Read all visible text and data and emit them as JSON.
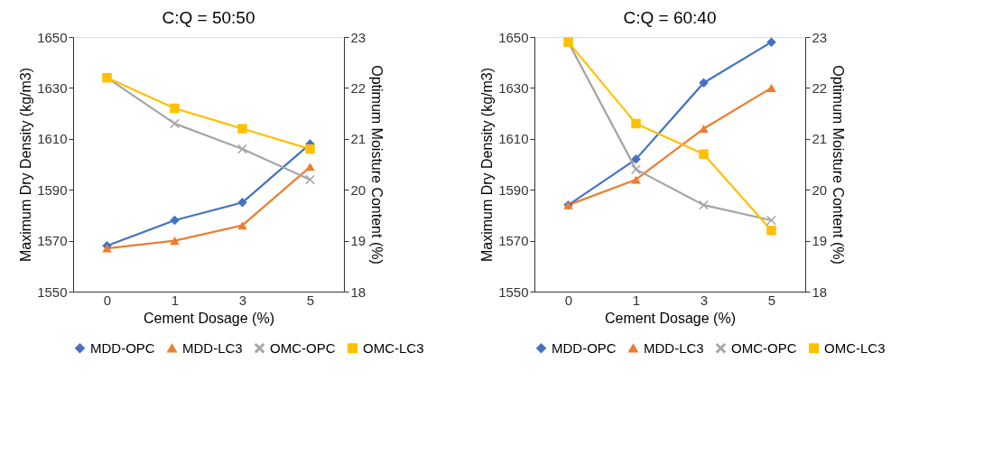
{
  "chart_data": [
    {
      "type": "line",
      "title": "C:Q = 50:50",
      "xlabel": "Cement Dosage (%)",
      "ylabel": "Maximum Dry Density (kg/m3)",
      "y2label": "Optimum Moisture Content (%)",
      "categories": [
        "0",
        "1",
        "3",
        "5"
      ],
      "ylim": [
        1550,
        1650
      ],
      "yticks": [
        1550,
        1570,
        1590,
        1610,
        1630,
        1650
      ],
      "y2lim": [
        18,
        23
      ],
      "y2ticks": [
        18,
        19,
        20,
        21,
        22,
        23
      ],
      "grid": false,
      "legend": "bottom",
      "series": [
        {
          "name": "MDD-OPC",
          "color": "#4472c4",
          "marker": "diamond",
          "values": [
            1568,
            1578,
            1585,
            1608
          ]
        },
        {
          "name": "MDD-LC3",
          "color": "#ed7d31",
          "marker": "triangle",
          "values": [
            1567,
            1570,
            1576,
            1599
          ]
        },
        {
          "name": "OMC-OPC",
          "color": "#a5a5a5",
          "marker": "cross",
          "axis": "y2",
          "values": [
            22.2,
            21.3,
            20.8,
            20.2
          ]
        },
        {
          "name": "OMC-LC3",
          "color": "#ffc000",
          "marker": "square",
          "axis": "y2",
          "values": [
            22.2,
            21.6,
            21.2,
            20.8
          ]
        }
      ]
    },
    {
      "type": "line",
      "title": "C:Q = 60:40",
      "xlabel": "Cement Dosage (%)",
      "ylabel": "Maximum Dry Density (kg/m3)",
      "y2label": "Optimum Moisture Content (%)",
      "categories": [
        "0",
        "1",
        "3",
        "5"
      ],
      "ylim": [
        1550,
        1650
      ],
      "yticks": [
        1550,
        1570,
        1590,
        1610,
        1630,
        1650
      ],
      "y2lim": [
        18,
        23
      ],
      "y2ticks": [
        18,
        19,
        20,
        21,
        22,
        23
      ],
      "grid": false,
      "legend": "bottom",
      "series": [
        {
          "name": "MDD-OPC",
          "color": "#4472c4",
          "marker": "diamond",
          "values": [
            1584,
            1602,
            1632,
            1648
          ]
        },
        {
          "name": "MDD-LC3",
          "color": "#ed7d31",
          "marker": "triangle",
          "values": [
            1584,
            1594,
            1614,
            1630
          ]
        },
        {
          "name": "OMC-OPC",
          "color": "#a5a5a5",
          "marker": "cross",
          "axis": "y2",
          "values": [
            22.9,
            20.4,
            19.7,
            19.4
          ]
        },
        {
          "name": "OMC-LC3",
          "color": "#ffc000",
          "marker": "square",
          "axis": "y2",
          "values": [
            22.9,
            21.3,
            20.7,
            19.2
          ]
        }
      ]
    }
  ]
}
